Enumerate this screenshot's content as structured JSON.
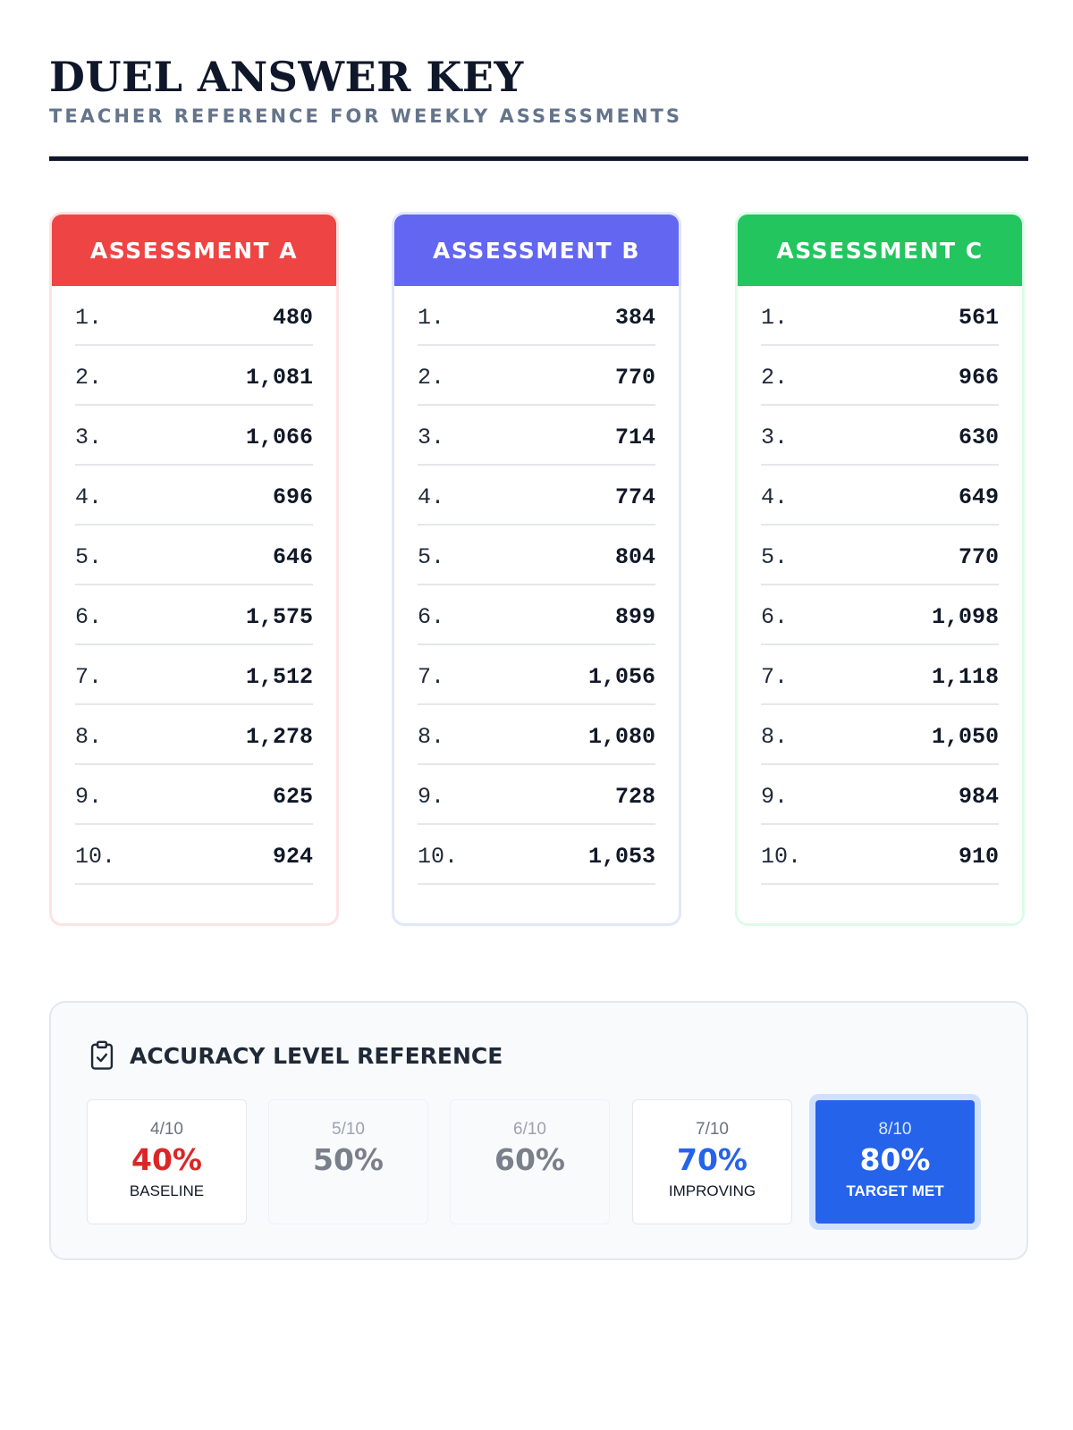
{
  "header": {
    "title": "DUEL ANSWER KEY",
    "subtitle": "TEACHER REFERENCE FOR WEEKLY ASSESSMENTS"
  },
  "assessments": [
    {
      "label": "ASSESSMENT A",
      "color": "#ef4444",
      "answers": [
        {
          "num": "1.",
          "value": "480"
        },
        {
          "num": "2.",
          "value": "1,081"
        },
        {
          "num": "3.",
          "value": "1,066"
        },
        {
          "num": "4.",
          "value": "696"
        },
        {
          "num": "5.",
          "value": "646"
        },
        {
          "num": "6.",
          "value": "1,575"
        },
        {
          "num": "7.",
          "value": "1,512"
        },
        {
          "num": "8.",
          "value": "1,278"
        },
        {
          "num": "9.",
          "value": "625"
        },
        {
          "num": "10.",
          "value": "924"
        }
      ]
    },
    {
      "label": "ASSESSMENT B",
      "color": "#6366f1",
      "answers": [
        {
          "num": "1.",
          "value": "384"
        },
        {
          "num": "2.",
          "value": "770"
        },
        {
          "num": "3.",
          "value": "714"
        },
        {
          "num": "4.",
          "value": "774"
        },
        {
          "num": "5.",
          "value": "804"
        },
        {
          "num": "6.",
          "value": "899"
        },
        {
          "num": "7.",
          "value": "1,056"
        },
        {
          "num": "8.",
          "value": "1,080"
        },
        {
          "num": "9.",
          "value": "728"
        },
        {
          "num": "10.",
          "value": "1,053"
        }
      ]
    },
    {
      "label": "ASSESSMENT C",
      "color": "#22c55e",
      "answers": [
        {
          "num": "1.",
          "value": "561"
        },
        {
          "num": "2.",
          "value": "966"
        },
        {
          "num": "3.",
          "value": "630"
        },
        {
          "num": "4.",
          "value": "649"
        },
        {
          "num": "5.",
          "value": "770"
        },
        {
          "num": "6.",
          "value": "1,098"
        },
        {
          "num": "7.",
          "value": "1,118"
        },
        {
          "num": "8.",
          "value": "1,050"
        },
        {
          "num": "9.",
          "value": "984"
        },
        {
          "num": "10.",
          "value": "910"
        }
      ]
    }
  ],
  "accuracy": {
    "title": "ACCURACY LEVEL REFERENCE",
    "icon": "clipboard-check-icon",
    "levels": [
      {
        "score": "4/10",
        "percent": "40%",
        "label": "BASELINE"
      },
      {
        "score": "5/10",
        "percent": "50%",
        "label": ""
      },
      {
        "score": "6/10",
        "percent": "60%",
        "label": ""
      },
      {
        "score": "7/10",
        "percent": "70%",
        "label": "IMPROVING"
      },
      {
        "score": "8/10",
        "percent": "80%",
        "label": "TARGET MET"
      }
    ],
    "colors": {
      "baseline": "#dc2626",
      "improving": "#2563eb",
      "target": "#2563eb"
    }
  }
}
